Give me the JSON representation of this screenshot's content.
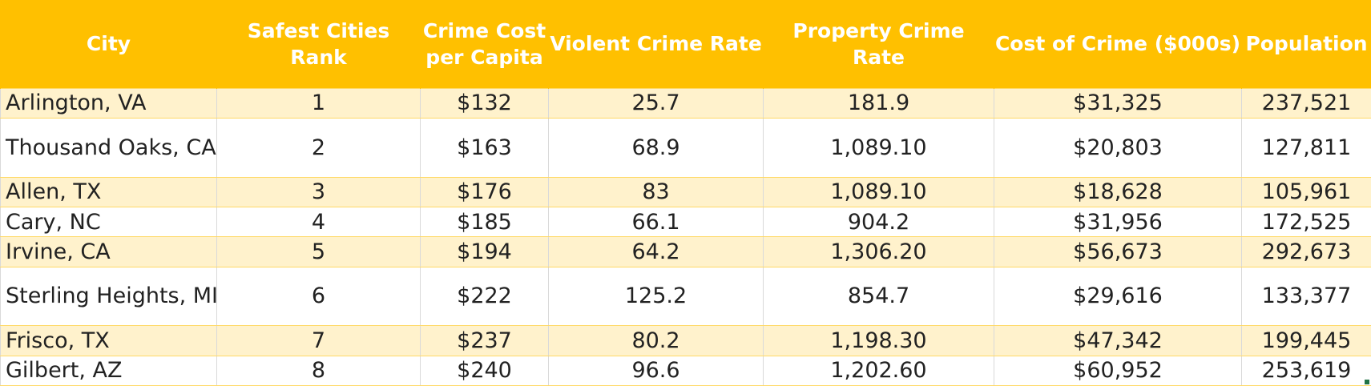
{
  "table": {
    "headers": [
      "City",
      "Safest Cities Rank",
      "Crime Cost per Capita",
      "Violent Crime Rate",
      "Property Crime Rate",
      "Cost of Crime ($000s)",
      "Population"
    ],
    "rows": [
      [
        "Arlington, VA",
        "1",
        "$132",
        "25.7",
        "181.9",
        "$31,325",
        "237,521"
      ],
      [
        "Thousand Oaks, CA",
        "2",
        "$163",
        "68.9",
        "1,089.10",
        "$20,803",
        "127,811"
      ],
      [
        "Allen, TX",
        "3",
        "$176",
        "83",
        "1,089.10",
        "$18,628",
        "105,961"
      ],
      [
        "Cary, NC",
        "4",
        "$185",
        "66.1",
        "904.2",
        "$31,956",
        "172,525"
      ],
      [
        "Irvine, CA",
        "5",
        "$194",
        "64.2",
        "1,306.20",
        "$56,673",
        "292,673"
      ],
      [
        "Sterling Heights, MI",
        "6",
        "$222",
        "125.2",
        "854.7",
        "$29,616",
        "133,377"
      ],
      [
        "Frisco, TX",
        "7",
        "$237",
        "80.2",
        "1,198.30",
        "$47,342",
        "199,445"
      ],
      [
        "Gilbert, AZ",
        "8",
        "$240",
        "96.6",
        "1,202.60",
        "$60,952",
        "253,619"
      ]
    ]
  },
  "colors": {
    "header_bg": "#FFC000",
    "header_text": "#FFFFFF",
    "band_row_bg": "#FFF2CC",
    "plain_row_bg": "#FFFFFF"
  }
}
